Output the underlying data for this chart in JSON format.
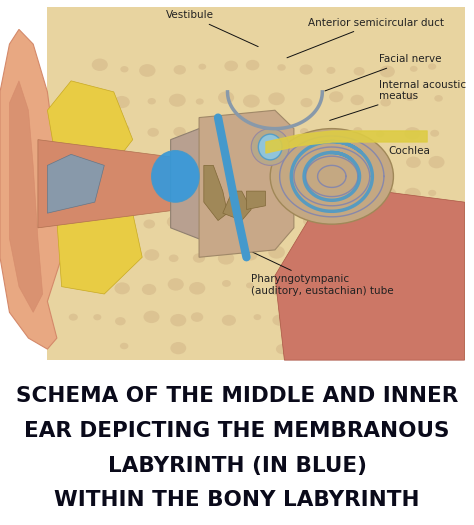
{
  "title_lines": [
    "SCHEMA OF THE MIDDLE AND INNER",
    "EAR DEPICTING THE MEMBRANOUS",
    "LABYRINTH (IN BLUE)",
    "WITHIN THE BONY LABYRINTH"
  ],
  "title_fontsize": 15.5,
  "title_color": "#0a0a1a",
  "title_fontweight": "bold",
  "bg_color": "#ffffff",
  "annotation_fontsize": 7.5,
  "annotation_color": "#222222",
  "line_color": "#111111",
  "pinna_color": "#E8A882",
  "pinna_dark": "#D4896A",
  "bone_color": "#D4B88A",
  "bone_light": "#E8D4A0",
  "cochlea_tan": "#C4A882",
  "blue_membrane": "#4499CC",
  "blue_light": "#88CCEE",
  "yellow_fat": "#E8CC44",
  "red_deep": "#CC7766"
}
